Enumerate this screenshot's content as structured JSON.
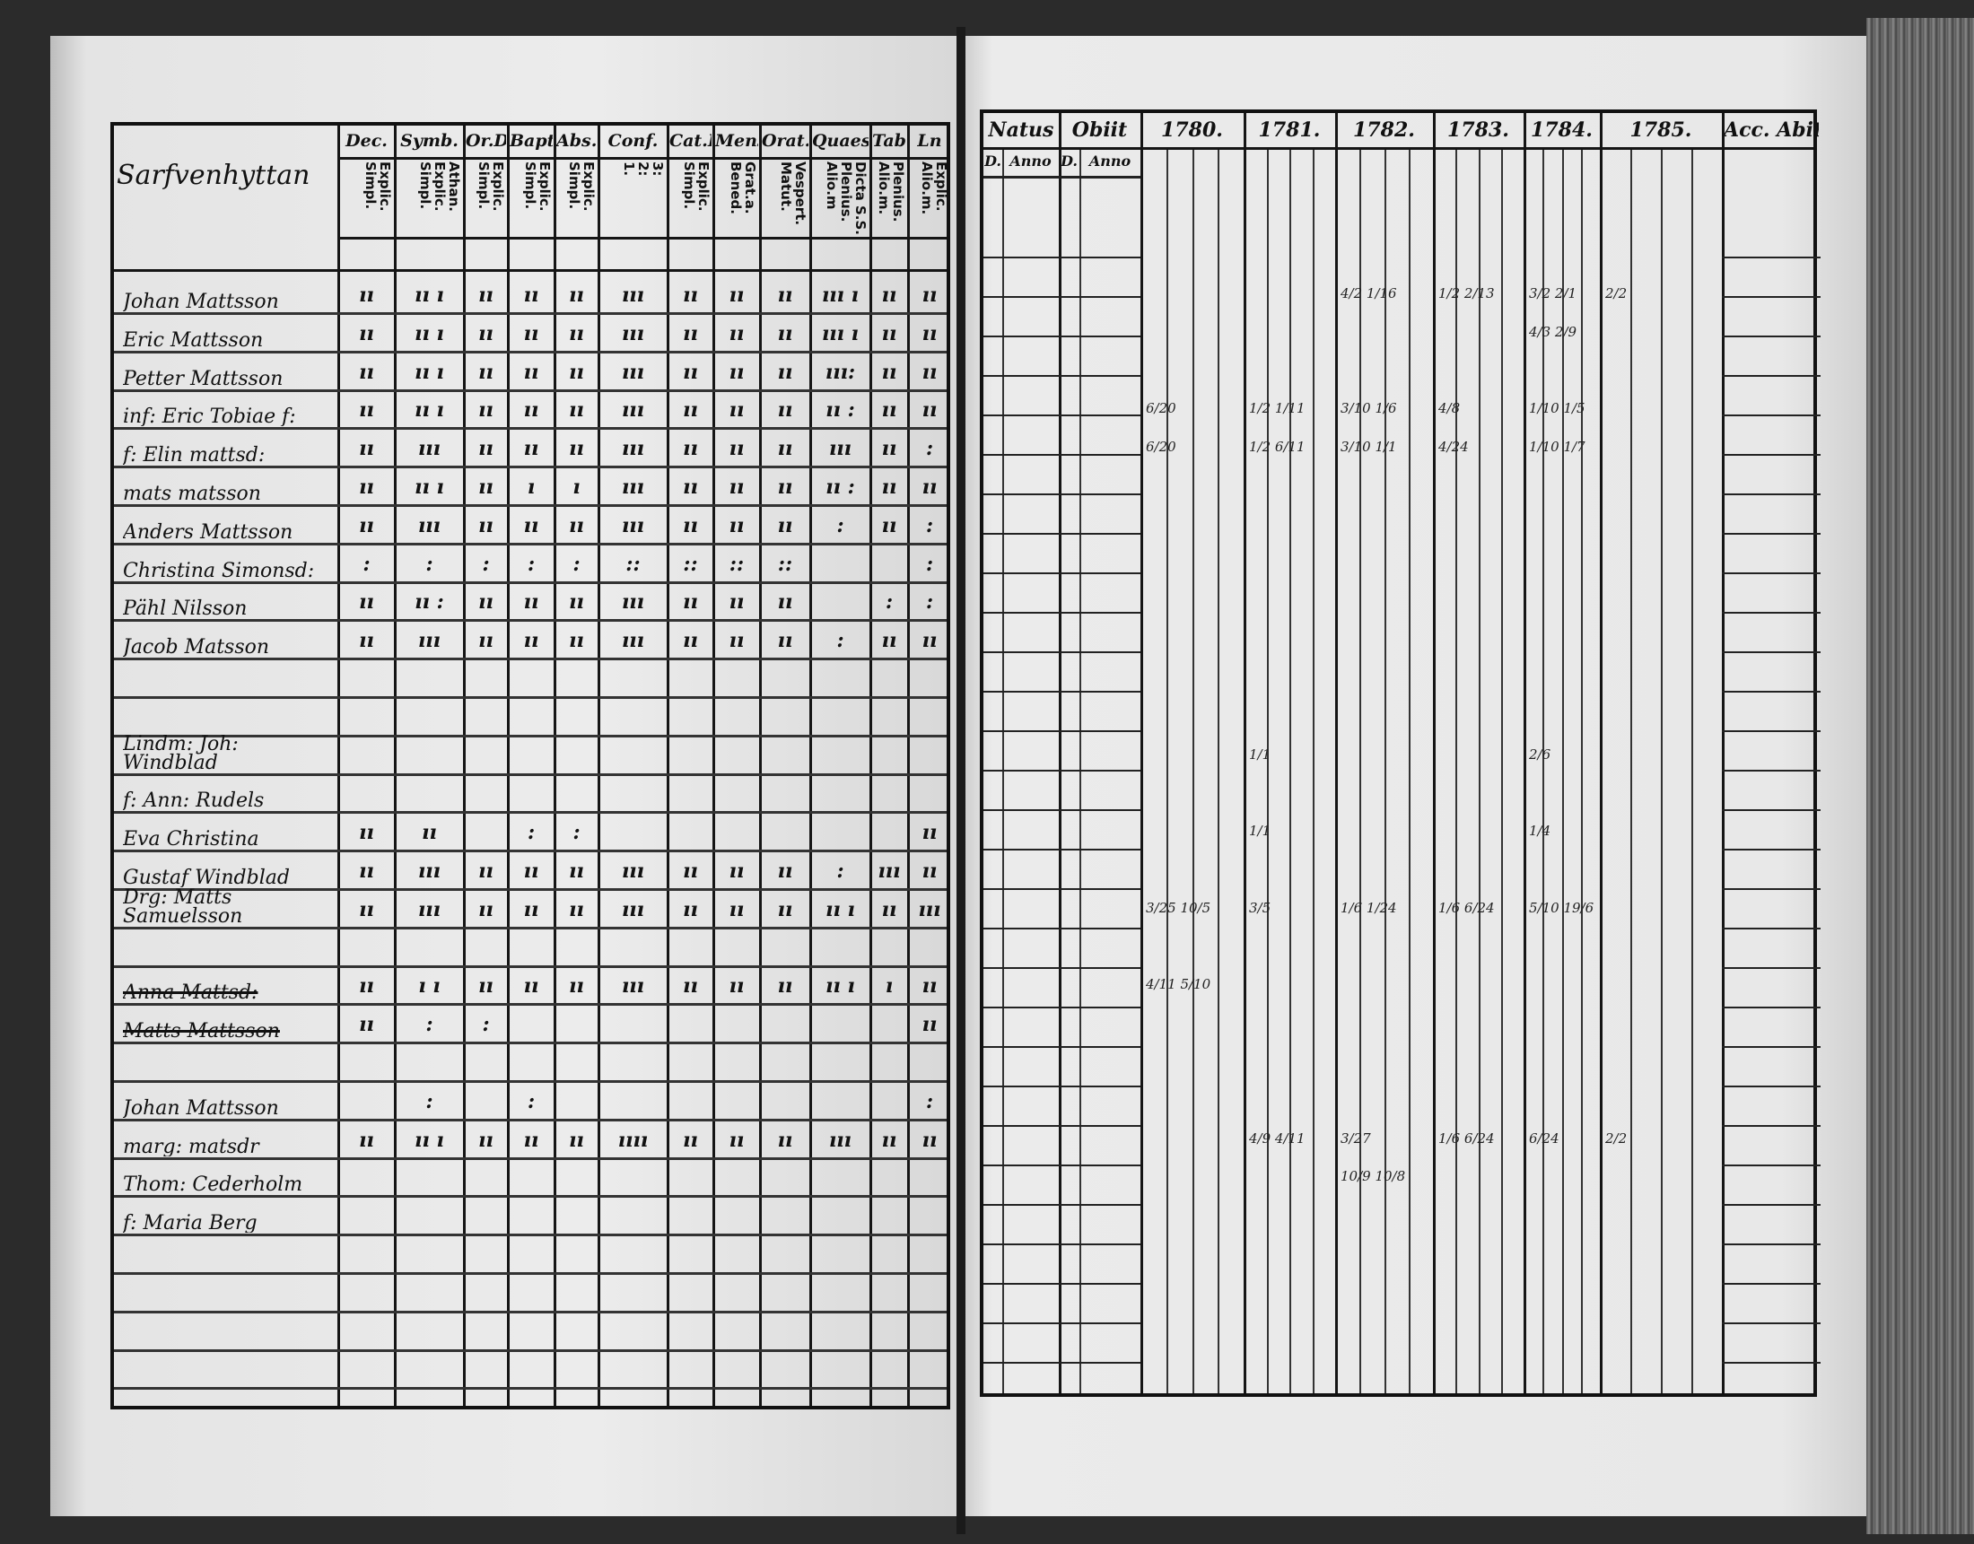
{
  "left_page": {
    "title": "Sarfvenhyttan",
    "columns": [
      {
        "label": "Dec.",
        "sub": "Explic.\nSimpl."
      },
      {
        "label": "Symb.",
        "sub": "Athan.\nExplic.\nSimpl."
      },
      {
        "label": "Or.D",
        "sub": "Explic.\nSimpl."
      },
      {
        "label": "Bapt.",
        "sub": "Explic.\nSimpl."
      },
      {
        "label": "Abs.",
        "sub": "Explic.\nSimpl."
      },
      {
        "label": "Conf.",
        "sub": "3:\n2:\n1."
      },
      {
        "label": "Cat.D",
        "sub": "Explic.\nSimpl."
      },
      {
        "label": "Mens.",
        "sub": "Grat.a.\nBened."
      },
      {
        "label": "Orat.",
        "sub": "Vespert.\nMatut."
      },
      {
        "label": "Quaest.",
        "sub": "Dicta S.S.\nPlenius.\nAlio.m"
      },
      {
        "label": "Tab.",
        "sub": "Plenius.\nAlio.m."
      },
      {
        "label": "Ln",
        "sub": "Explic.\nAlio.m."
      }
    ],
    "rows": [
      {
        "name": "Johan Mattsson",
        "marks": [
          "ıı",
          "ıı ı",
          "ıı",
          "ıı",
          "ıı",
          "ııı",
          "ıı",
          "ıı",
          "ıı",
          "ııı ı",
          "ıı",
          "ıı"
        ]
      },
      {
        "name": "Eric Mattsson",
        "marks": [
          "ıı",
          "ıı ı",
          "ıı",
          "ıı",
          "ıı",
          "ııı",
          "ıı",
          "ıı",
          "ıı",
          "ııı ı",
          "ıı",
          "ıı"
        ]
      },
      {
        "name": "Petter Mattsson",
        "marks": [
          "ıı",
          "ıı ı",
          "ıı",
          "ıı",
          "ıı",
          "ııı",
          "ıı",
          "ıı",
          "ıı",
          "ııı:",
          "ıı",
          "ıı"
        ]
      },
      {
        "name": "inf: Eric Tobiae f:",
        "marks": [
          "ıı",
          "ıı ı",
          "ıı",
          "ıı",
          "ıı",
          "ııı",
          "ıı",
          "ıı",
          "ıı",
          "ıı :",
          "ıı",
          "ıı"
        ]
      },
      {
        "name": "f: Elin mattsd:",
        "marks": [
          "ıı",
          "ııı",
          "ıı",
          "ıı",
          "ıı",
          "ııı",
          "ıı",
          "ıı",
          "ıı",
          "ııı",
          "ıı",
          ":"
        ]
      },
      {
        "name": "mats matsson",
        "marks": [
          "ıı",
          "ıı ı",
          "ıı",
          "ı",
          "ı",
          "ııı",
          "ıı",
          "ıı",
          "ıı",
          "ıı :",
          "ıı",
          "ıı"
        ]
      },
      {
        "name": "Anders Mattsson",
        "marks": [
          "ıı",
          "ııı",
          "ıı",
          "ıı",
          "ıı",
          "ııı",
          "ıı",
          "ıı",
          "ıı",
          ":",
          "ıı",
          ":"
        ]
      },
      {
        "name": "Christina Simonsd:",
        "marks": [
          ":",
          ":",
          ":",
          ":",
          ":",
          "::",
          "::",
          "::",
          "::",
          "",
          "",
          ":"
        ]
      },
      {
        "name": "Pähl Nilsson",
        "marks": [
          "ıı",
          "ıı :",
          "ıı",
          "ıı",
          "ıı",
          "ııı",
          "ıı",
          "ıı",
          "ıı",
          "",
          ":",
          ":"
        ]
      },
      {
        "name": "Jacob Matsson",
        "marks": [
          "ıı",
          "ııı",
          "ıı",
          "ıı",
          "ıı",
          "ııı",
          "ıı",
          "ıı",
          "ıı",
          ":",
          "ıı",
          "ıı"
        ]
      },
      {
        "name": "",
        "marks": []
      },
      {
        "name": "",
        "marks": []
      },
      {
        "name": "Lindm: Joh: Windblad",
        "marks": []
      },
      {
        "name": "f: Ann: Rudels",
        "marks": []
      },
      {
        "name": "Eva Christina",
        "marks": [
          "ıı",
          "ıı",
          "",
          ":",
          ":",
          "",
          "",
          "",
          "",
          "",
          "",
          "ıı"
        ]
      },
      {
        "name": "Gustaf Windblad",
        "marks": [
          "ıı",
          "ııı",
          "ıı",
          "ıı",
          "ıı",
          "ııı",
          "ıı",
          "ıı",
          "ıı",
          ":",
          "ııı",
          "ıı"
        ]
      },
      {
        "name": "Drg: Matts Samuelsson",
        "marks": [
          "ıı",
          "ııı",
          "ıı",
          "ıı",
          "ıı",
          "ııı",
          "ıı",
          "ıı",
          "ıı",
          "ıı ı",
          "ıı",
          "ııı"
        ]
      },
      {
        "name": "",
        "marks": []
      },
      {
        "name": "Anna Mattsd:",
        "struck": true,
        "marks": [
          "ıı",
          "ı ı",
          "ıı",
          "ıı",
          "ıı",
          "ııı",
          "ıı",
          "ıı",
          "ıı",
          "ıı ı",
          "ı",
          "ıı"
        ]
      },
      {
        "name": "Matts Mattsson",
        "struck": true,
        "marks": [
          "ıı",
          ":",
          ":",
          "",
          "",
          "",
          "",
          "",
          "",
          "",
          "",
          "ıı"
        ]
      },
      {
        "name": "",
        "marks": []
      },
      {
        "name": "Johan Mattsson",
        "marks": [
          "",
          ":",
          "",
          ":",
          "",
          "",
          "",
          "",
          "",
          "",
          "",
          ":"
        ]
      },
      {
        "name": "marg: matsdr",
        "marks": [
          "ıı",
          "ıı ı",
          "ıı",
          "ıı",
          "ıı",
          "ıııı",
          "ıı",
          "ıı",
          "ıı",
          "ııı",
          "ıı",
          "ıı"
        ]
      },
      {
        "name": "Thom: Cederholm",
        "marks": []
      },
      {
        "name": "f: Maria Berg",
        "marks": []
      }
    ]
  },
  "right_page": {
    "columns": [
      "Natus",
      "Obiit",
      "1780.",
      "1781.",
      "1782.",
      "1783.",
      "1784.",
      "1785.",
      "Acc. Abit"
    ],
    "sub_labels": [
      "D.",
      "Anno",
      "D.",
      "Anno"
    ],
    "entries": [
      {
        "row": 0,
        "col": "1782.",
        "text": "4/2 1/16"
      },
      {
        "row": 0,
        "col": "1783.",
        "text": "1/2 2/13"
      },
      {
        "row": 0,
        "col": "1784.",
        "text": "3/2 2/1"
      },
      {
        "row": 0,
        "col": "1785.",
        "text": "2/2"
      },
      {
        "row": 1,
        "col": "1784.",
        "text": "4/3 2/9"
      },
      {
        "row": 3,
        "col": "1780.",
        "text": "6/20"
      },
      {
        "row": 3,
        "col": "1781.",
        "text": "1/2 1/11"
      },
      {
        "row": 3,
        "col": "1782.",
        "text": "3/10 1/6"
      },
      {
        "row": 3,
        "col": "1783.",
        "text": "4/8"
      },
      {
        "row": 3,
        "col": "1784.",
        "text": "1/10 1/5"
      },
      {
        "row": 4,
        "col": "1780.",
        "text": "6/20"
      },
      {
        "row": 4,
        "col": "1781.",
        "text": "1/2 6/11"
      },
      {
        "row": 4,
        "col": "1782.",
        "text": "3/10 1/1"
      },
      {
        "row": 4,
        "col": "1783.",
        "text": "4/24"
      },
      {
        "row": 4,
        "col": "1784.",
        "text": "1/10 1/7"
      },
      {
        "row": 12,
        "col": "1781.",
        "text": "1/1"
      },
      {
        "row": 12,
        "col": "1784.",
        "text": "2/6"
      },
      {
        "row": 14,
        "col": "1781.",
        "text": "1/1"
      },
      {
        "row": 14,
        "col": "1784.",
        "text": "1/4"
      },
      {
        "row": 16,
        "col": "1780.",
        "text": "3/25 10/5"
      },
      {
        "row": 16,
        "col": "1781.",
        "text": "3/5"
      },
      {
        "row": 16,
        "col": "1782.",
        "text": "1/6 1/24"
      },
      {
        "row": 16,
        "col": "1783.",
        "text": "1/6 6/24"
      },
      {
        "row": 16,
        "col": "1784.",
        "text": "5/10 19/6"
      },
      {
        "row": 18,
        "col": "1780.",
        "text": "4/11 5/10"
      },
      {
        "row": 22,
        "col": "1781.",
        "text": "4/9 4/11"
      },
      {
        "row": 22,
        "col": "1782.",
        "text": "3/27"
      },
      {
        "row": 22,
        "col": "1783.",
        "text": "1/6 6/24"
      },
      {
        "row": 22,
        "col": "1784.",
        "text": "6/24"
      },
      {
        "row": 22,
        "col": "1785.",
        "text": "2/2"
      },
      {
        "row": 23,
        "col": "1782.",
        "text": "10/9 10/8"
      }
    ]
  }
}
